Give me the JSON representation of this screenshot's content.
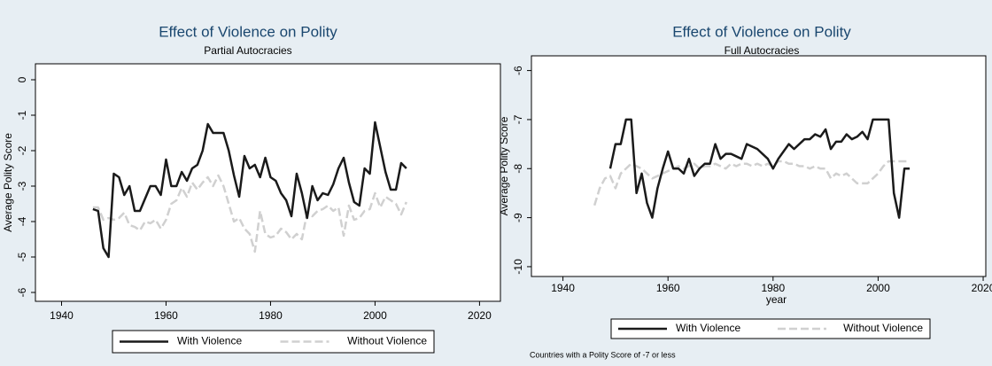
{
  "chart_data": [
    {
      "type": "line",
      "title": "Effect of Violence on Polity",
      "subtitle": "Partial Autocracies",
      "y_label": "Average Polity Score",
      "xlim": [
        1935,
        2024
      ],
      "xticks": [
        1940,
        1960,
        1980,
        2000,
        2020
      ],
      "ylim": [
        -6.25,
        0.45
      ],
      "yticks": [
        0,
        -1,
        -2,
        -3,
        -4,
        -5,
        -6
      ],
      "x": [
        1946,
        1947,
        1948,
        1949,
        1950,
        1951,
        1952,
        1953,
        1954,
        1955,
        1956,
        1957,
        1958,
        1959,
        1960,
        1961,
        1962,
        1963,
        1964,
        1965,
        1966,
        1967,
        1968,
        1969,
        1970,
        1971,
        1972,
        1973,
        1974,
        1975,
        1976,
        1977,
        1978,
        1979,
        1980,
        1981,
        1982,
        1983,
        1984,
        1985,
        1986,
        1987,
        1988,
        1989,
        1990,
        1991,
        1992,
        1993,
        1994,
        1995,
        1996,
        1997,
        1998,
        1999,
        2000,
        2001,
        2002,
        2003,
        2004,
        2005,
        2006
      ],
      "series": [
        {
          "name": "With Violence",
          "color": "#1a1a1a",
          "values": [
            -3.65,
            -3.7,
            -4.75,
            -5.0,
            -2.65,
            -2.75,
            -3.25,
            -3.0,
            -3.7,
            -3.7,
            -3.35,
            -3.0,
            -3.0,
            -3.25,
            -2.25,
            -3.0,
            -3.0,
            -2.6,
            -2.85,
            -2.5,
            -2.4,
            -2.0,
            -1.25,
            -1.5,
            -1.5,
            -1.5,
            -2.0,
            -2.7,
            -3.3,
            -2.15,
            -2.5,
            -2.4,
            -2.75,
            -2.2,
            -2.75,
            -2.85,
            -3.2,
            -3.4,
            -3.85,
            -2.65,
            -3.2,
            -3.9,
            -3.0,
            -3.4,
            -3.2,
            -3.25,
            -2.95,
            -2.5,
            -2.2,
            -2.9,
            -3.45,
            -3.55,
            -2.5,
            -2.65,
            -1.2,
            -1.9,
            -2.6,
            -3.1,
            -3.1,
            -2.35,
            -2.5
          ]
        },
        {
          "name": "Without Violence",
          "color": "#d0d0d0",
          "values": [
            -3.6,
            -3.6,
            -3.95,
            -3.9,
            -3.95,
            -3.9,
            -3.75,
            -4.1,
            -4.15,
            -4.25,
            -4.0,
            -4.05,
            -3.95,
            -4.2,
            -3.95,
            -3.5,
            -3.4,
            -3.05,
            -3.3,
            -2.9,
            -3.1,
            -2.9,
            -2.75,
            -3.0,
            -2.7,
            -3.0,
            -3.5,
            -4.0,
            -3.9,
            -4.2,
            -4.35,
            -4.85,
            -3.7,
            -4.35,
            -4.45,
            -4.4,
            -4.2,
            -4.3,
            -4.5,
            -4.35,
            -4.5,
            -3.75,
            -3.85,
            -3.7,
            -3.65,
            -3.55,
            -3.7,
            -3.6,
            -4.4,
            -3.55,
            -3.95,
            -3.9,
            -3.7,
            -3.65,
            -3.2,
            -3.6,
            -3.3,
            -3.4,
            -3.5,
            -3.8,
            -3.45
          ]
        }
      ]
    },
    {
      "type": "line",
      "title": "Effect of Violence on Polity",
      "subtitle": "Full Autocracies",
      "y_label": "Average Polity Score",
      "x_label": "year",
      "note": "Countries with a Polity Score of -7 or less",
      "xlim": [
        1934,
        2020.5
      ],
      "xticks": [
        1940,
        1960,
        1980,
        2000,
        2020
      ],
      "ylim": [
        -10.2,
        -5.7
      ],
      "yticks": [
        -6,
        -7,
        -8,
        -9,
        -10
      ],
      "x": [
        1946,
        1947,
        1948,
        1949,
        1950,
        1951,
        1952,
        1953,
        1954,
        1955,
        1956,
        1957,
        1958,
        1959,
        1960,
        1961,
        1962,
        1963,
        1964,
        1965,
        1966,
        1967,
        1968,
        1969,
        1970,
        1971,
        1972,
        1973,
        1974,
        1975,
        1976,
        1977,
        1978,
        1979,
        1980,
        1981,
        1982,
        1983,
        1984,
        1985,
        1986,
        1987,
        1988,
        1989,
        1990,
        1991,
        1992,
        1993,
        1994,
        1995,
        1996,
        1997,
        1998,
        1999,
        2000,
        2001,
        2002,
        2003,
        2004,
        2005,
        2006
      ],
      "series": [
        {
          "name": "With Violence",
          "color": "#1a1a1a",
          "values": [
            null,
            null,
            null,
            -8.0,
            -7.5,
            -7.5,
            -7.0,
            -7.0,
            -8.5,
            -8.1,
            -8.7,
            -9.0,
            -8.4,
            -8.0,
            -7.65,
            -8.0,
            -8.0,
            -8.1,
            -7.8,
            -8.15,
            -8.0,
            -7.9,
            -7.9,
            -7.5,
            -7.8,
            -7.7,
            -7.7,
            -7.75,
            -7.8,
            -7.5,
            -7.55,
            -7.6,
            -7.7,
            -7.8,
            -8.0,
            -7.8,
            -7.65,
            -7.5,
            -7.6,
            -7.5,
            -7.4,
            -7.4,
            -7.3,
            -7.35,
            -7.2,
            -7.6,
            -7.45,
            -7.45,
            -7.3,
            -7.4,
            -7.35,
            -7.25,
            -7.4,
            -7.0,
            -7.0,
            -7.0,
            -7.0,
            -8.5,
            -9.0,
            -8.0,
            -8.0
          ]
        },
        {
          "name": "Without Violence",
          "color": "#d0d0d0",
          "values": [
            -8.75,
            -8.4,
            -8.2,
            -8.15,
            -8.4,
            -8.1,
            -8.0,
            -7.9,
            -7.95,
            -8.0,
            -8.1,
            -8.2,
            -8.15,
            -8.1,
            -8.05,
            -8.0,
            -7.95,
            -8.0,
            -7.95,
            -7.9,
            -8.0,
            -7.95,
            -7.95,
            -7.9,
            -7.95,
            -8.0,
            -7.9,
            -7.95,
            -7.9,
            -7.9,
            -7.95,
            -7.9,
            -7.95,
            -7.9,
            -7.95,
            -7.85,
            -7.85,
            -7.9,
            -7.9,
            -7.95,
            -7.95,
            -8.0,
            -7.95,
            -8.0,
            -8.0,
            -8.2,
            -8.1,
            -8.15,
            -8.1,
            -8.2,
            -8.3,
            -8.3,
            -8.3,
            -8.2,
            -8.1,
            -7.95,
            -7.85,
            -7.85,
            -7.85,
            -7.85,
            -7.85
          ]
        }
      ]
    }
  ]
}
